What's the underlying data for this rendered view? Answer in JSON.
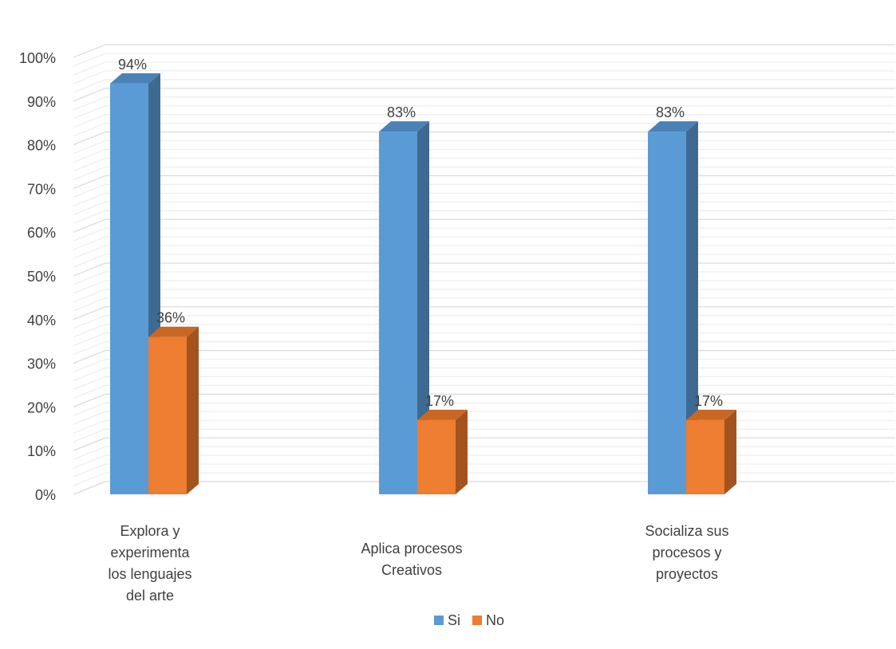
{
  "chart_data": {
    "type": "bar",
    "categories": [
      [
        "Explora y",
        "experimenta",
        "los lenguajes",
        "del arte"
      ],
      [
        "Aplica procesos",
        "Creativos"
      ],
      [
        "Socializa sus",
        "procesos y",
        "proyectos"
      ]
    ],
    "series": [
      {
        "name": "Si",
        "values": [
          94,
          83,
          83
        ],
        "labels": [
          "94%",
          "83%",
          "83%"
        ],
        "color": "#5B9BD5",
        "side_color": "#3E6A92",
        "top_color": "#4A82B8"
      },
      {
        "name": "No",
        "values": [
          36,
          17,
          17
        ],
        "labels": [
          "36%",
          "17%",
          "17%"
        ],
        "color": "#ED7D31",
        "side_color": "#A3531D",
        "top_color": "#C96824"
      }
    ],
    "yticks": [
      "0%",
      "10%",
      "20%",
      "30%",
      "40%",
      "50%",
      "60%",
      "70%",
      "80%",
      "90%",
      "100%"
    ],
    "ylim": [
      0,
      100
    ],
    "grid": true,
    "legend_position": "bottom",
    "three_d": true
  }
}
